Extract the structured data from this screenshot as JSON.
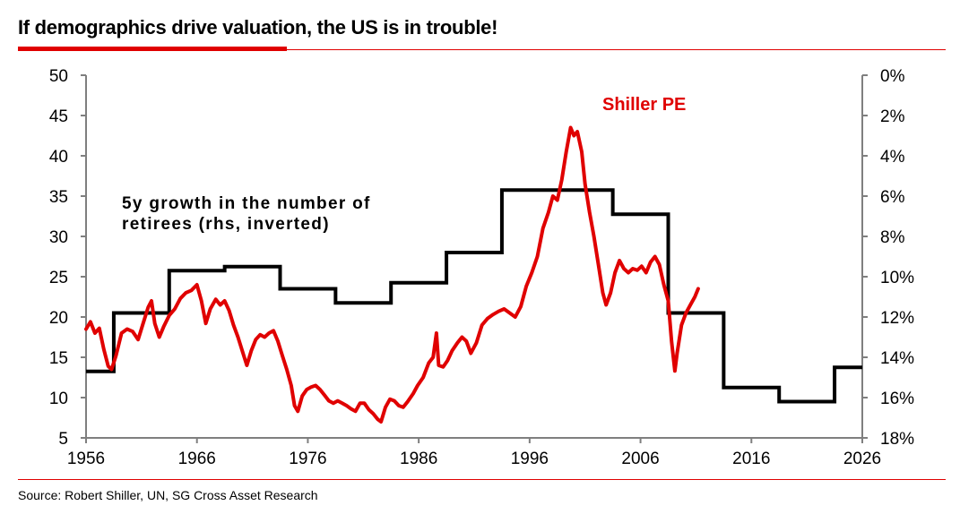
{
  "title": "If demographics drive valuation, the US is in trouble!",
  "source": "Source: Robert Shiller, UN, SG Cross Asset Research",
  "colors": {
    "accent": "#e00000",
    "shiller": "#e00000",
    "retirees": "#000000",
    "axis": "#7f7f7f"
  },
  "chart_data": {
    "type": "line",
    "xlim": [
      1956,
      2026
    ],
    "x_ticks": [
      "1956",
      "1966",
      "1976",
      "1986",
      "1996",
      "2006",
      "2016",
      "2026"
    ],
    "ylim_left": [
      5,
      50
    ],
    "y_left_ticks": [
      "50",
      "45",
      "40",
      "35",
      "30",
      "25",
      "20",
      "15",
      "10",
      "5"
    ],
    "ylim_right": [
      0,
      18
    ],
    "y_right_inverted": true,
    "y_right_ticks": [
      "0%",
      "2%",
      "4%",
      "6%",
      "8%",
      "10%",
      "12%",
      "14%",
      "16%",
      "18%"
    ],
    "series": [
      {
        "name": "Shiller PE",
        "axis": "left",
        "color": "#e00000",
        "label": "Shiller PE",
        "points": [
          [
            1956.0,
            18.5
          ],
          [
            1956.4,
            19.4
          ],
          [
            1956.8,
            18.0
          ],
          [
            1957.2,
            18.6
          ],
          [
            1957.6,
            16.0
          ],
          [
            1958.0,
            13.9
          ],
          [
            1958.3,
            13.5
          ],
          [
            1958.7,
            15.2
          ],
          [
            1959.2,
            18.0
          ],
          [
            1959.7,
            18.5
          ],
          [
            1960.2,
            18.2
          ],
          [
            1960.7,
            17.2
          ],
          [
            1961.1,
            19.0
          ],
          [
            1961.6,
            21.2
          ],
          [
            1961.9,
            22.0
          ],
          [
            1962.2,
            19.2
          ],
          [
            1962.6,
            17.5
          ],
          [
            1963.0,
            18.8
          ],
          [
            1963.5,
            20.2
          ],
          [
            1964.0,
            21.0
          ],
          [
            1964.5,
            22.3
          ],
          [
            1965.0,
            23.0
          ],
          [
            1965.5,
            23.3
          ],
          [
            1966.0,
            24.0
          ],
          [
            1966.4,
            22.0
          ],
          [
            1966.8,
            19.2
          ],
          [
            1967.2,
            21.0
          ],
          [
            1967.7,
            22.2
          ],
          [
            1968.1,
            21.5
          ],
          [
            1968.5,
            22.0
          ],
          [
            1968.9,
            20.8
          ],
          [
            1969.3,
            19.0
          ],
          [
            1969.7,
            17.5
          ],
          [
            1970.2,
            15.3
          ],
          [
            1970.5,
            14.0
          ],
          [
            1970.9,
            15.8
          ],
          [
            1971.3,
            17.2
          ],
          [
            1971.7,
            17.8
          ],
          [
            1972.1,
            17.5
          ],
          [
            1972.5,
            18.0
          ],
          [
            1972.9,
            18.3
          ],
          [
            1973.3,
            17.0
          ],
          [
            1973.7,
            15.2
          ],
          [
            1974.1,
            13.5
          ],
          [
            1974.5,
            11.5
          ],
          [
            1974.8,
            9.0
          ],
          [
            1975.1,
            8.3
          ],
          [
            1975.5,
            10.2
          ],
          [
            1975.9,
            11.0
          ],
          [
            1976.3,
            11.3
          ],
          [
            1976.7,
            11.5
          ],
          [
            1977.1,
            11.0
          ],
          [
            1977.5,
            10.3
          ],
          [
            1977.9,
            9.6
          ],
          [
            1978.3,
            9.3
          ],
          [
            1978.7,
            9.6
          ],
          [
            1979.1,
            9.3
          ],
          [
            1979.5,
            9.0
          ],
          [
            1979.9,
            8.6
          ],
          [
            1980.3,
            8.3
          ],
          [
            1980.7,
            9.3
          ],
          [
            1981.1,
            9.3
          ],
          [
            1981.5,
            8.5
          ],
          [
            1981.9,
            8.0
          ],
          [
            1982.3,
            7.3
          ],
          [
            1982.6,
            7.0
          ],
          [
            1983.0,
            8.8
          ],
          [
            1983.4,
            9.8
          ],
          [
            1983.8,
            9.6
          ],
          [
            1984.2,
            9.0
          ],
          [
            1984.6,
            8.8
          ],
          [
            1985.0,
            9.5
          ],
          [
            1985.5,
            10.5
          ],
          [
            1985.9,
            11.5
          ],
          [
            1986.4,
            12.5
          ],
          [
            1986.9,
            14.3
          ],
          [
            1987.3,
            15.0
          ],
          [
            1987.6,
            18.0
          ],
          [
            1987.8,
            14.0
          ],
          [
            1988.2,
            13.8
          ],
          [
            1988.6,
            14.6
          ],
          [
            1989.0,
            15.8
          ],
          [
            1989.5,
            16.8
          ],
          [
            1989.9,
            17.5
          ],
          [
            1990.3,
            17.0
          ],
          [
            1990.7,
            15.5
          ],
          [
            1991.2,
            16.8
          ],
          [
            1991.7,
            19.0
          ],
          [
            1992.2,
            19.8
          ],
          [
            1992.7,
            20.3
          ],
          [
            1993.2,
            20.7
          ],
          [
            1993.7,
            21.0
          ],
          [
            1994.2,
            20.5
          ],
          [
            1994.7,
            20.0
          ],
          [
            1995.2,
            21.3
          ],
          [
            1995.7,
            23.8
          ],
          [
            1996.2,
            25.5
          ],
          [
            1996.7,
            27.5
          ],
          [
            1997.2,
            31.0
          ],
          [
            1997.7,
            33.0
          ],
          [
            1998.1,
            35.0
          ],
          [
            1998.5,
            34.5
          ],
          [
            1998.9,
            37.0
          ],
          [
            1999.3,
            40.5
          ],
          [
            1999.7,
            43.5
          ],
          [
            2000.0,
            42.5
          ],
          [
            2000.3,
            43.0
          ],
          [
            2000.7,
            40.5
          ],
          [
            2001.0,
            36.5
          ],
          [
            2001.4,
            33.0
          ],
          [
            2001.8,
            30.0
          ],
          [
            2002.2,
            26.5
          ],
          [
            2002.6,
            23.0
          ],
          [
            2002.9,
            21.5
          ],
          [
            2003.3,
            23.0
          ],
          [
            2003.7,
            25.5
          ],
          [
            2004.1,
            27.0
          ],
          [
            2004.5,
            26.0
          ],
          [
            2004.9,
            25.5
          ],
          [
            2005.3,
            26.0
          ],
          [
            2005.7,
            25.8
          ],
          [
            2006.1,
            26.3
          ],
          [
            2006.5,
            25.5
          ],
          [
            2006.9,
            26.8
          ],
          [
            2007.3,
            27.5
          ],
          [
            2007.7,
            26.5
          ],
          [
            2008.1,
            24.0
          ],
          [
            2008.5,
            22.0
          ],
          [
            2008.8,
            17.0
          ],
          [
            2009.1,
            13.3
          ],
          [
            2009.3,
            15.5
          ],
          [
            2009.7,
            19.0
          ],
          [
            2010.1,
            20.5
          ],
          [
            2010.5,
            21.5
          ],
          [
            2010.9,
            22.5
          ],
          [
            2011.2,
            23.5
          ]
        ]
      },
      {
        "name": "5y growth in the number of retirees (rhs, inverted)",
        "axis": "right",
        "color": "#000000",
        "label_line1": "5y growth in the number of",
        "label_line2": "retirees (rhs, inverted)",
        "steps": [
          [
            1956.0,
            14.7
          ],
          [
            1958.5,
            11.8
          ],
          [
            1963.5,
            9.7
          ],
          [
            1968.5,
            9.5
          ],
          [
            1973.5,
            10.6
          ],
          [
            1978.5,
            11.3
          ],
          [
            1983.5,
            10.3
          ],
          [
            1988.5,
            8.8
          ],
          [
            1993.5,
            5.7
          ],
          [
            2003.5,
            6.9
          ],
          [
            2008.5,
            11.8
          ],
          [
            2013.5,
            15.5
          ],
          [
            2018.5,
            16.2
          ],
          [
            2023.5,
            14.5
          ],
          [
            2026.0,
            14.5
          ]
        ]
      }
    ]
  }
}
